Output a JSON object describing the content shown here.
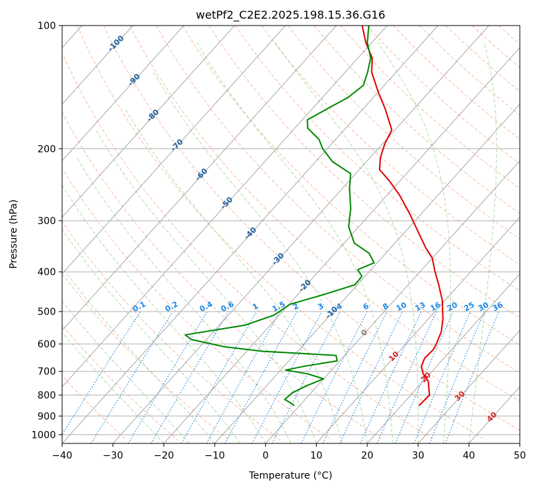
{
  "chart_data": {
    "type": "line",
    "title": "wetPf2_C2E2.2025.198.15.36.G16",
    "xlabel": "Temperature (°C)",
    "ylabel": "Pressure (hPa)",
    "xlim": [
      -40,
      50
    ],
    "ylim": [
      1050,
      100
    ],
    "y_scale": "log",
    "grid": true,
    "x_ticks": [
      "−40",
      "−30",
      "−20",
      "−10",
      "0",
      "10",
      "20",
      "30",
      "40",
      "50"
    ],
    "y_ticks": [
      "100",
      "200",
      "300",
      "400",
      "500",
      "600",
      "700",
      "800",
      "900",
      "1000"
    ],
    "series": [
      {
        "name": "",
        "color": "#e00000",
        "points": [
          {
            "p": 850,
            "t": 23.5
          },
          {
            "p": 800,
            "t": 23.7
          },
          {
            "p": 780,
            "t": 22.8
          },
          {
            "p": 740,
            "t": 21.0
          },
          {
            "p": 710,
            "t": 18.7
          },
          {
            "p": 680,
            "t": 17.0
          },
          {
            "p": 650,
            "t": 16.2
          },
          {
            "p": 620,
            "t": 16.4
          },
          {
            "p": 600,
            "t": 16.0
          },
          {
            "p": 560,
            "t": 14.8
          },
          {
            "p": 520,
            "t": 12.8
          },
          {
            "p": 500,
            "t": 11.5
          },
          {
            "p": 470,
            "t": 9.5
          },
          {
            "p": 430,
            "t": 6.0
          },
          {
            "p": 400,
            "t": 3.0
          },
          {
            "p": 370,
            "t": 0.0
          },
          {
            "p": 350,
            "t": -3.0
          },
          {
            "p": 320,
            "t": -7.3
          },
          {
            "p": 290,
            "t": -12.0
          },
          {
            "p": 260,
            "t": -17.5
          },
          {
            "p": 240,
            "t": -22.0
          },
          {
            "p": 225,
            "t": -26.0
          },
          {
            "p": 210,
            "t": -28.0
          },
          {
            "p": 195,
            "t": -29.5
          },
          {
            "p": 180,
            "t": -30.6
          },
          {
            "p": 160,
            "t": -35.6
          },
          {
            "p": 145,
            "t": -40.1
          },
          {
            "p": 130,
            "t": -44.8
          },
          {
            "p": 120,
            "t": -47.2
          },
          {
            "p": 110,
            "t": -51.2
          },
          {
            "p": 100,
            "t": -54.9
          }
        ]
      },
      {
        "name": "",
        "color": "#008800",
        "points": [
          {
            "p": 850,
            "t": -1.0
          },
          {
            "p": 840,
            "t": -1.8
          },
          {
            "p": 820,
            "t": -4.0
          },
          {
            "p": 790,
            "t": -3.7
          },
          {
            "p": 760,
            "t": -2.2
          },
          {
            "p": 730,
            "t": 0.0
          },
          {
            "p": 710,
            "t": -4.0
          },
          {
            "p": 695,
            "t": -9.0
          },
          {
            "p": 680,
            "t": -6.0
          },
          {
            "p": 660,
            "t": -0.5
          },
          {
            "p": 640,
            "t": -1.7
          },
          {
            "p": 625,
            "t": -17.0
          },
          {
            "p": 610,
            "t": -25.0
          },
          {
            "p": 585,
            "t": -33.0
          },
          {
            "p": 570,
            "t": -35.0
          },
          {
            "p": 540,
            "t": -25.0
          },
          {
            "p": 510,
            "t": -21.0
          },
          {
            "p": 480,
            "t": -19.8
          },
          {
            "p": 455,
            "t": -15.0
          },
          {
            "p": 430,
            "t": -10.5
          },
          {
            "p": 410,
            "t": -10.6
          },
          {
            "p": 395,
            "t": -12.6
          },
          {
            "p": 380,
            "t": -10.6
          },
          {
            "p": 360,
            "t": -13.3
          },
          {
            "p": 340,
            "t": -18.0
          },
          {
            "p": 310,
            "t": -22.0
          },
          {
            "p": 280,
            "t": -24.8
          },
          {
            "p": 250,
            "t": -28.6
          },
          {
            "p": 230,
            "t": -31.0
          },
          {
            "p": 215,
            "t": -36.7
          },
          {
            "p": 200,
            "t": -40.9
          },
          {
            "p": 190,
            "t": -43.2
          },
          {
            "p": 178,
            "t": -47.5
          },
          {
            "p": 170,
            "t": -49.0
          },
          {
            "p": 160,
            "t": -47.1
          },
          {
            "p": 150,
            "t": -45.0
          },
          {
            "p": 140,
            "t": -44.1
          },
          {
            "p": 130,
            "t": -45.6
          },
          {
            "p": 120,
            "t": -47.5
          },
          {
            "p": 110,
            "t": -50.9
          },
          {
            "p": 100,
            "t": -53.6
          }
        ]
      }
    ],
    "isotherm_labels": [
      {
        "text": "-100",
        "t": -100,
        "p": 110,
        "color": "#1f5fa0"
      },
      {
        "text": "-90",
        "t": -90,
        "p": 135,
        "color": "#1f5fa0"
      },
      {
        "text": "-80",
        "t": -80,
        "p": 165,
        "color": "#1f5fa0"
      },
      {
        "text": "-70",
        "t": -70,
        "p": 195,
        "color": "#1f5fa0"
      },
      {
        "text": "-60",
        "t": -60,
        "p": 230,
        "color": "#1f5fa0"
      },
      {
        "text": "-50",
        "t": -50,
        "p": 270,
        "color": "#1f5fa0"
      },
      {
        "text": "-40",
        "t": -40,
        "p": 320,
        "color": "#1f5fa0"
      },
      {
        "text": "-30",
        "t": -30,
        "p": 370,
        "color": "#1f5fa0"
      },
      {
        "text": "-20",
        "t": -20,
        "p": 430,
        "color": "#1f5fa0"
      },
      {
        "text": "-10",
        "t": -10,
        "p": 500,
        "color": "#1f5fa0"
      },
      {
        "text": "0",
        "t": 0,
        "p": 560,
        "color": "#7a7a7a"
      },
      {
        "text": "10",
        "t": 10,
        "p": 640,
        "color": "#d62728"
      },
      {
        "text": "20",
        "t": 20,
        "p": 720,
        "color": "#d62728"
      },
      {
        "text": "30",
        "t": 30,
        "p": 800,
        "color": "#d62728"
      },
      {
        "text": "40",
        "t": 40,
        "p": 900,
        "color": "#d62728"
      }
    ],
    "mixing_ratio_labels": [
      "0.1",
      "0.2",
      "0.4",
      "0.6",
      "1",
      "1.5",
      "2",
      "3",
      "4",
      "6",
      "8",
      "10",
      "13",
      "16",
      "20",
      "25",
      "30",
      "36"
    ]
  }
}
